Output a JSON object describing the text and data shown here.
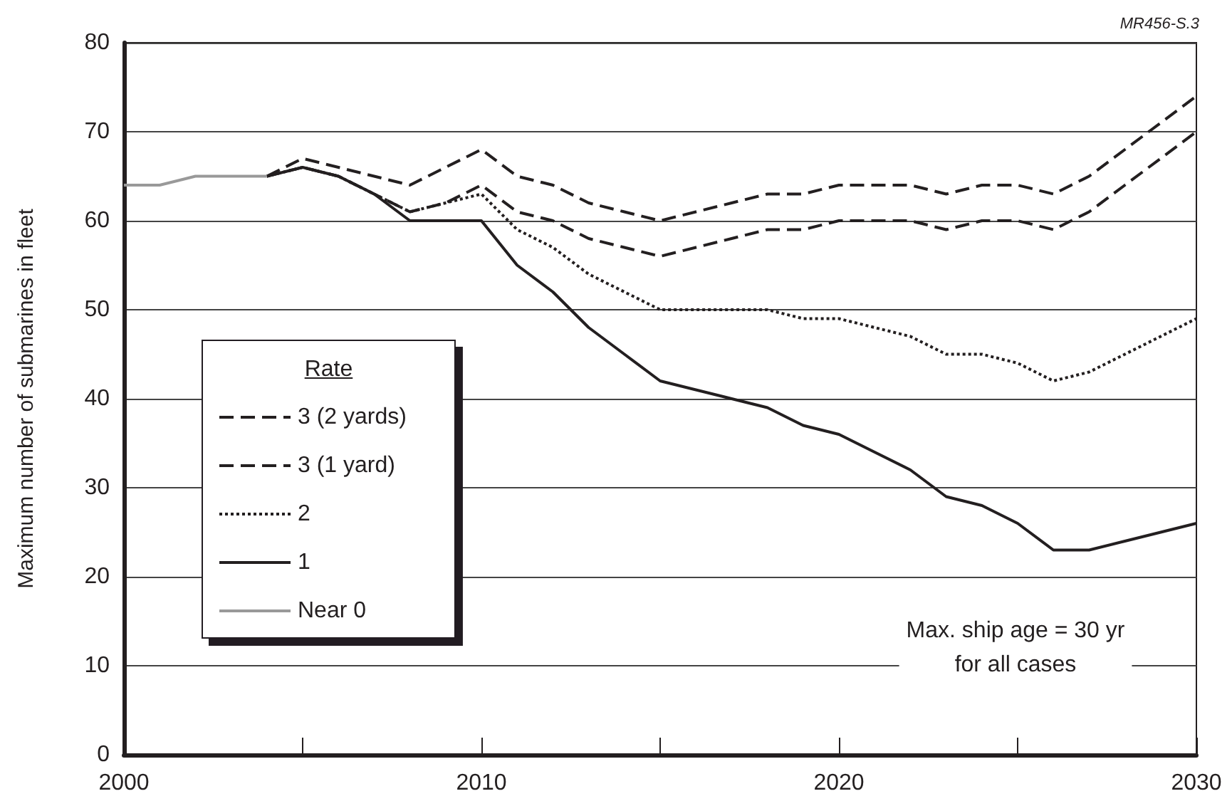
{
  "chart_data": {
    "type": "line",
    "ylabel": "Maximum number of submarines in fleet",
    "legend_title": "Rate",
    "annotations": [
      "Max. ship age = 30 yr\nfor all cases",
      "MR456-S.3"
    ],
    "xlim": [
      2000,
      2030
    ],
    "xticks": [
      2000,
      {
        "value": 2005,
        "label": null
      },
      2010,
      {
        "value": 2015,
        "label": null
      },
      2020,
      {
        "value": 2025,
        "label": null
      },
      2030
    ],
    "ylim": [
      0,
      80
    ],
    "yticks": [
      0,
      10,
      20,
      30,
      40,
      50,
      60,
      70,
      80
    ],
    "grid": "y",
    "legend": "left",
    "marker": "none",
    "series": [
      {
        "name": "3 (2 yards)",
        "color": "#231f20",
        "line_style": "dashed",
        "x": [
          2004,
          2005,
          2006,
          2007,
          2008,
          2009,
          2010,
          2011,
          2012,
          2013,
          2014,
          2015,
          2016,
          2017,
          2018,
          2019,
          2020,
          2021,
          2022,
          2023,
          2024,
          2025,
          2026,
          2027,
          2028,
          2029,
          2030
        ],
        "values": [
          65,
          67,
          66,
          65,
          64,
          66,
          68,
          65,
          64,
          62,
          61,
          60,
          61,
          62,
          63,
          63,
          64,
          64,
          64,
          63,
          64,
          64,
          63,
          65,
          68,
          71,
          74
        ]
      },
      {
        "name": "3 (1 yard)",
        "color": "#231f20",
        "line_style": "dashed",
        "x": [
          2004,
          2005,
          2006,
          2007,
          2008,
          2009,
          2010,
          2011,
          2012,
          2013,
          2014,
          2015,
          2016,
          2017,
          2018,
          2019,
          2020,
          2021,
          2022,
          2023,
          2024,
          2025,
          2026,
          2027,
          2028,
          2029,
          2030
        ],
        "values": [
          65,
          66,
          65,
          63,
          61,
          62,
          64,
          61,
          60,
          58,
          57,
          56,
          57,
          58,
          59,
          59,
          60,
          60,
          60,
          59,
          60,
          60,
          59,
          61,
          64,
          67,
          70
        ]
      },
      {
        "name": "2",
        "color": "#231f20",
        "line_style": "dotted",
        "x": [
          2004,
          2005,
          2006,
          2007,
          2008,
          2009,
          2010,
          2011,
          2012,
          2013,
          2014,
          2015,
          2016,
          2017,
          2018,
          2019,
          2020,
          2021,
          2022,
          2023,
          2024,
          2025,
          2026,
          2027,
          2028,
          2029,
          2030
        ],
        "values": [
          65,
          66,
          65,
          63,
          61,
          62,
          63,
          59,
          57,
          54,
          52,
          50,
          50,
          50,
          50,
          49,
          49,
          48,
          47,
          45,
          45,
          44,
          42,
          43,
          45,
          47,
          49
        ]
      },
      {
        "name": "1",
        "color": "#231f20",
        "line_style": "solid",
        "x": [
          2004,
          2005,
          2006,
          2007,
          2008,
          2009,
          2010,
          2011,
          2012,
          2013,
          2014,
          2015,
          2016,
          2017,
          2018,
          2019,
          2020,
          2021,
          2022,
          2023,
          2024,
          2025,
          2026,
          2027,
          2028,
          2029,
          2030
        ],
        "values": [
          65,
          66,
          65,
          63,
          60,
          60,
          60,
          55,
          52,
          48,
          45,
          42,
          41,
          40,
          39,
          37,
          36,
          34,
          32,
          29,
          28,
          26,
          23,
          23,
          24,
          25,
          26
        ]
      },
      {
        "name": "Near 0",
        "color": "#999999",
        "line_style": "solid",
        "x": [
          2000,
          2001,
          2002,
          2003,
          2004
        ],
        "values": [
          64,
          64,
          65,
          65,
          65
        ]
      }
    ]
  }
}
